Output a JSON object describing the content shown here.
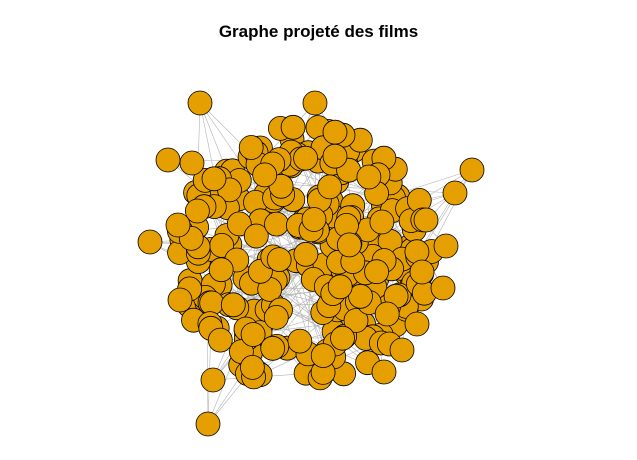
{
  "title": "Graphe projeté des films",
  "colors": {
    "node_fill": "#E69F00",
    "node_stroke": "#000000",
    "edge": "#b3b3b3",
    "background": "#ffffff"
  }
}
